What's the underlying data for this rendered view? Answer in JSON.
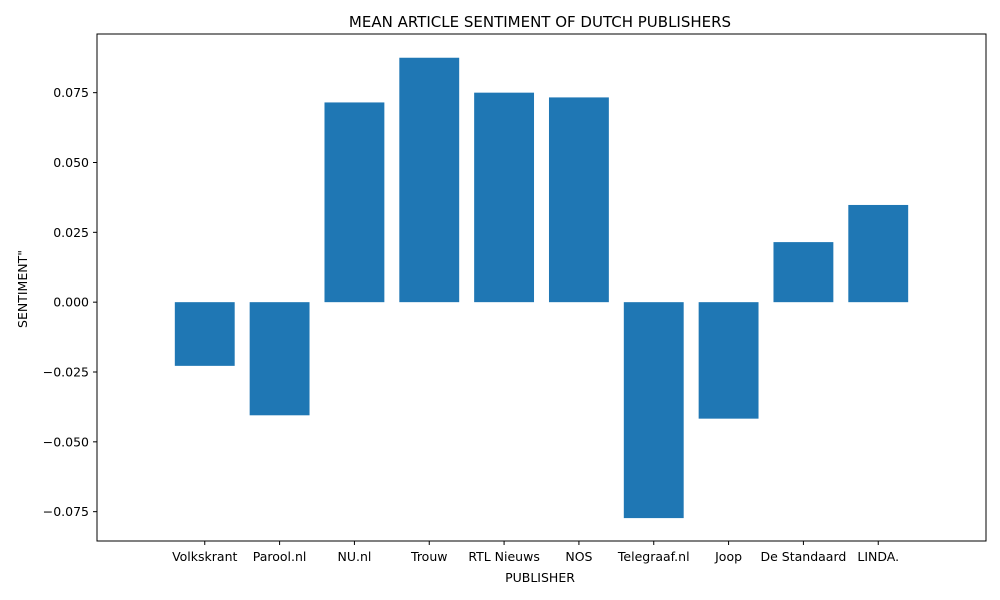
{
  "chart_data": {
    "type": "bar",
    "title": "MEAN ARTICLE SENTIMENT OF DUTCH PUBLISHERS",
    "xlabel": "PUBLISHER",
    "ylabel": "SENTIMENT\"",
    "categories": [
      "Volkskrant",
      "Parool.nl",
      "NU.nl",
      "Trouw",
      "RTL Nieuws",
      "NOS",
      "Telegraaf.nl",
      "Joop",
      "De Standaard",
      "LINDA."
    ],
    "values": [
      -0.0228,
      -0.0405,
      0.0715,
      0.0875,
      0.075,
      0.0733,
      -0.0773,
      -0.0417,
      0.0215,
      0.0348
    ],
    "ylim": [
      -0.0855,
      0.096
    ],
    "yticks": [
      -0.075,
      -0.05,
      -0.025,
      0.0,
      0.025,
      0.05,
      0.075
    ],
    "ytick_labels": [
      "−0.075",
      "−0.050",
      "−0.025",
      "0.000",
      "0.025",
      "0.050",
      "0.075"
    ],
    "grid": false,
    "bar_color": "#1f77b4"
  }
}
